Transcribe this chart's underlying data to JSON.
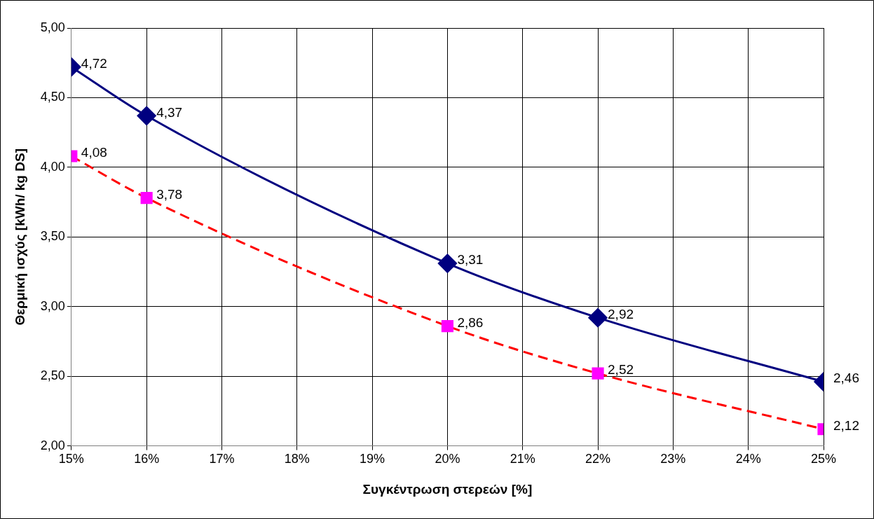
{
  "chart_data": {
    "type": "line",
    "xlabel": "Συγκέντρωση στερεών [%]",
    "ylabel": "Θερμική ισχύς [kWh/ kg DS]",
    "x": [
      15,
      16,
      20,
      22,
      25
    ],
    "xlim": [
      15,
      25
    ],
    "xticks": [
      {
        "value": 15,
        "label": "15%"
      },
      {
        "value": 16,
        "label": "16%"
      },
      {
        "value": 17,
        "label": "17%"
      },
      {
        "value": 18,
        "label": "18%"
      },
      {
        "value": 19,
        "label": "19%"
      },
      {
        "value": 20,
        "label": "20%"
      },
      {
        "value": 21,
        "label": "21%"
      },
      {
        "value": 22,
        "label": "22%"
      },
      {
        "value": 23,
        "label": "23%"
      },
      {
        "value": 24,
        "label": "24%"
      },
      {
        "value": 25,
        "label": "25%"
      }
    ],
    "ylim": [
      2,
      5
    ],
    "yticks": [
      {
        "value": 2,
        "label": "2,00"
      },
      {
        "value": 2.5,
        "label": "2,50"
      },
      {
        "value": 3,
        "label": "3,00"
      },
      {
        "value": 3.5,
        "label": "3,50"
      },
      {
        "value": 4,
        "label": "4,00"
      },
      {
        "value": 4.5,
        "label": "4,50"
      },
      {
        "value": 5,
        "label": "5,00"
      }
    ],
    "grid": true,
    "legend": false,
    "series": [
      {
        "color": "#000080",
        "values": [
          4.72,
          4.37,
          3.31,
          2.92,
          2.46
        ],
        "value_labels": [
          "4,72",
          "4,37",
          "3,31",
          "2,92",
          "2,46"
        ],
        "marker": "diamond",
        "line_style": "solid"
      },
      {
        "color": "#ff0000",
        "colors": [
          "#ff00ff",
          "#ff00ff",
          "#ff00ff",
          "#ff00ff",
          "#ff00ff"
        ],
        "values": [
          4.08,
          3.78,
          2.86,
          2.52,
          2.12
        ],
        "value_labels": [
          "4,08",
          "3,78",
          "2,86",
          "2,52",
          "2,12"
        ],
        "marker": "square",
        "line_style": "dashed"
      }
    ]
  }
}
